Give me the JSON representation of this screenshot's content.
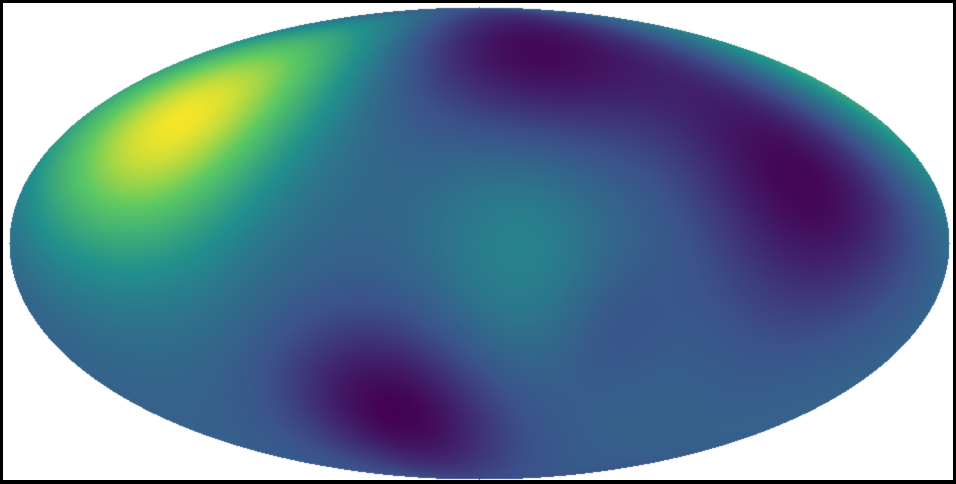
{
  "chart_data": {
    "type": "heatmap",
    "projection": "mollweide",
    "colormap": "viridis",
    "colormap_stops": [
      "#440154",
      "#3b528b",
      "#21918c",
      "#5ec962",
      "#fde725"
    ],
    "background": "#ffffff",
    "frame_color": "#000000",
    "title": "",
    "colorbar": false,
    "grid": false,
    "features": [
      {
        "name": "bright-maximum",
        "lon_deg": -135,
        "lat_deg": 40,
        "value": 1.0,
        "spread_deg": 30
      },
      {
        "name": "minimum-upper-center",
        "lon_deg": 30,
        "lat_deg": 68,
        "value": 0.0,
        "spread_deg": 25
      },
      {
        "name": "minimum-right",
        "lon_deg": 130,
        "lat_deg": 20,
        "value": 0.0,
        "spread_deg": 30
      },
      {
        "name": "minimum-lower-left",
        "lon_deg": -45,
        "lat_deg": -55,
        "value": 0.0,
        "spread_deg": 22
      },
      {
        "name": "medium-center",
        "lon_deg": 15,
        "lat_deg": 0,
        "value": 0.45,
        "spread_deg": 25
      },
      {
        "name": "dip-lower-right",
        "lon_deg": 55,
        "lat_deg": -25,
        "value": 0.25,
        "spread_deg": 15
      }
    ]
  }
}
